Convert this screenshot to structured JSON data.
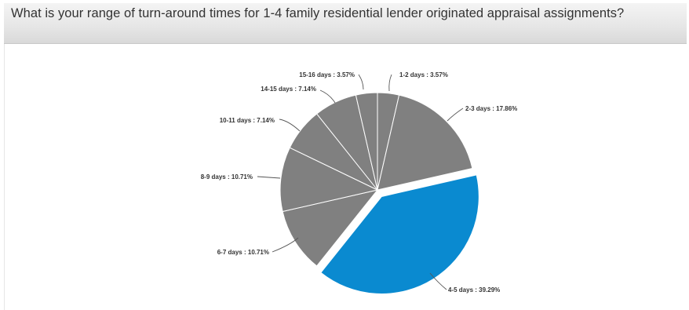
{
  "question": {
    "title": "What is your range of turn-around times for 1-4 family residential lender originated appraisal assignments?"
  },
  "colors": {
    "highlight": "#0a8ad0",
    "default": "#808080",
    "slice_border": "#ffffff"
  },
  "chart_data": {
    "type": "pie",
    "exploded_slice": "4-5 days",
    "slices": [
      {
        "label": "1-2 days",
        "value": 3.57,
        "display": "1-2 days : 3.57%"
      },
      {
        "label": "2-3 days",
        "value": 17.86,
        "display": "2-3 days : 17.86%"
      },
      {
        "label": "4-5 days",
        "value": 39.29,
        "display": "4-5 days : 39.29%"
      },
      {
        "label": "6-7 days",
        "value": 10.71,
        "display": "6-7 days : 10.71%"
      },
      {
        "label": "8-9 days",
        "value": 10.71,
        "display": "8-9 days : 10.71%"
      },
      {
        "label": "10-11 days",
        "value": 7.14,
        "display": "10-11 days : 7.14%"
      },
      {
        "label": "14-15 days",
        "value": 7.14,
        "display": "14-15 days : 7.14%"
      },
      {
        "label": "15-16 days",
        "value": 3.57,
        "display": "15-16 days : 3.57%"
      }
    ]
  }
}
